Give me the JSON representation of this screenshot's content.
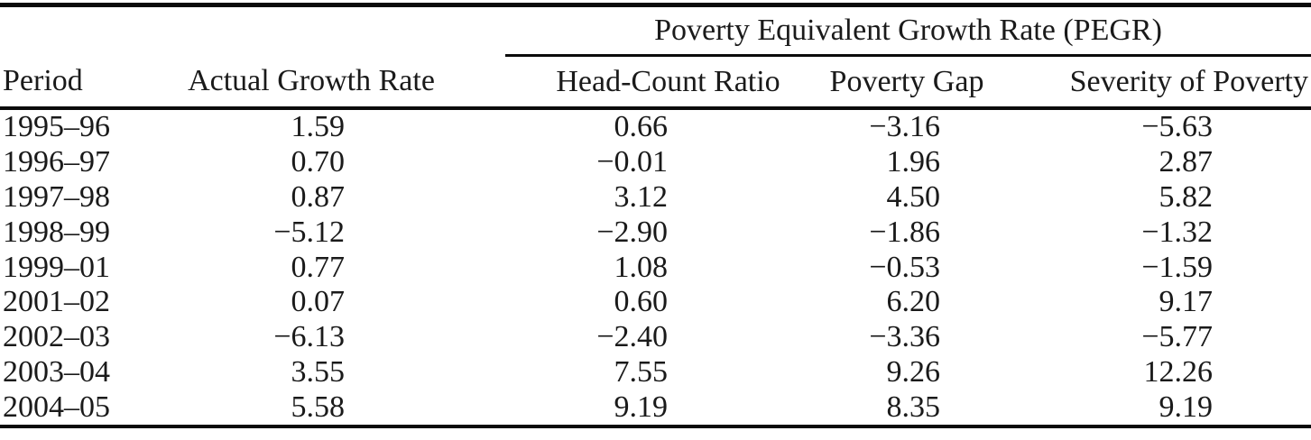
{
  "page": {
    "background_color": "#ffffff",
    "text_color": "#1a1a1a",
    "rule_color": "#0a0a0a"
  },
  "table": {
    "span_header": "Poverty Equivalent Growth Rate (PEGR)",
    "columns": [
      "Period",
      "Actual Growth Rate",
      "Head-Count Ratio",
      "Poverty Gap",
      "Severity of Poverty"
    ],
    "rows": [
      [
        "1995–96",
        "1.59",
        "0.66",
        "−3.16",
        "−5.63"
      ],
      [
        "1996–97",
        "0.70",
        "−0.01",
        "1.96",
        "2.87"
      ],
      [
        "1997–98",
        "0.87",
        "3.12",
        "4.50",
        "5.82"
      ],
      [
        "1998–99",
        "−5.12",
        "−2.90",
        "−1.86",
        "−1.32"
      ],
      [
        "1999–01",
        "0.77",
        "1.08",
        "−0.53",
        "−1.59"
      ],
      [
        "2001–02",
        "0.07",
        "0.60",
        "6.20",
        "9.17"
      ],
      [
        "2002–03",
        "−6.13",
        "−2.40",
        "−3.36",
        "−5.77"
      ],
      [
        "2003–04",
        "3.55",
        "7.55",
        "9.26",
        "12.26"
      ],
      [
        "2004–05",
        "5.58",
        "9.19",
        "8.35",
        "9.19"
      ]
    ]
  }
}
